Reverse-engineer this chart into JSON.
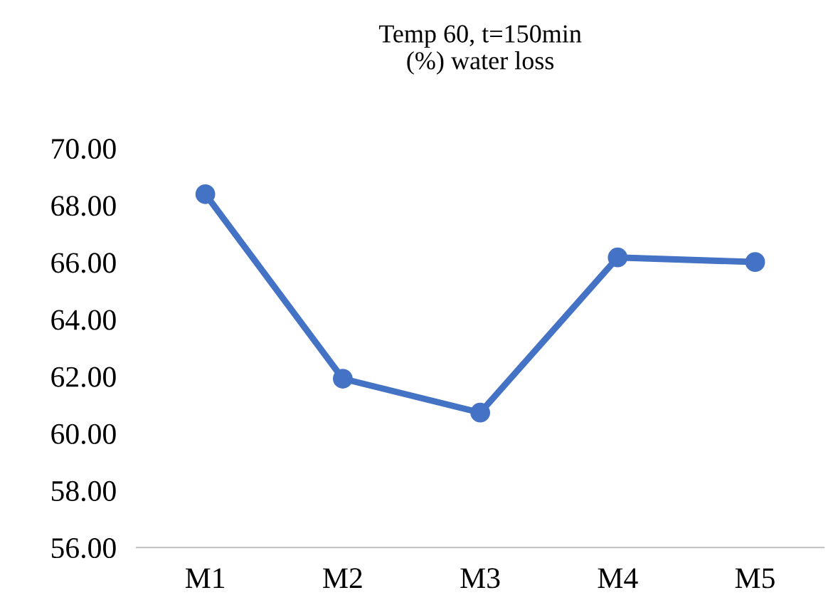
{
  "chart_data": {
    "type": "line",
    "title": "Temp 60, t=150min\n(%) water loss",
    "categories": [
      "M1",
      "M2",
      "M3",
      "M4",
      "M5"
    ],
    "series": [
      {
        "color": "#4472c4",
        "values": [
          68.39,
          61.92,
          60.73,
          66.17,
          66.01
        ]
      }
    ],
    "ylim": [
      56,
      70
    ],
    "yticks": [
      {
        "value": 56,
        "label": "56.00"
      },
      {
        "value": 58,
        "label": "58.00"
      },
      {
        "value": 60,
        "label": "60.00"
      },
      {
        "value": 62,
        "label": "62.00"
      },
      {
        "value": 64,
        "label": "64.00"
      },
      {
        "value": 66,
        "label": "66.00"
      },
      {
        "value": 68,
        "label": "68.00"
      },
      {
        "value": 70,
        "label": "70.00"
      }
    ],
    "grid": false,
    "legend": false,
    "marker": "circle",
    "line_style": "solid"
  }
}
